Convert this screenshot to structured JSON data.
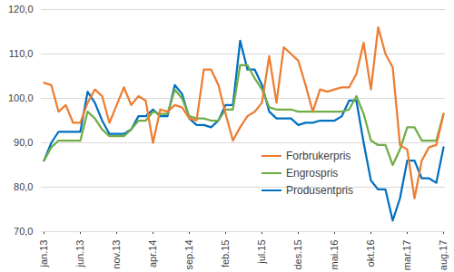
{
  "chart_data": {
    "type": "line",
    "categories": [
      "jan.13",
      null,
      null,
      null,
      null,
      "jun.13",
      null,
      null,
      null,
      null,
      "nov.13",
      null,
      null,
      null,
      null,
      "apr.14",
      null,
      null,
      null,
      null,
      "sep.14",
      null,
      null,
      null,
      null,
      "feb.15",
      null,
      null,
      null,
      null,
      "jul.15",
      null,
      null,
      null,
      null,
      "des.15",
      null,
      null,
      null,
      null,
      "mai.16",
      null,
      null,
      null,
      null,
      "okt.16",
      null,
      null,
      null,
      null,
      "mar.17",
      null,
      null,
      null,
      null,
      "aug.17"
    ],
    "series": [
      {
        "name": "Forbrukerpris",
        "color": "#ed7d31",
        "values": [
          103.5,
          103,
          97,
          98.5,
          94.5,
          94.5,
          99,
          102,
          100.5,
          94.5,
          98.5,
          102.5,
          98.5,
          100.5,
          99.5,
          90,
          97.5,
          97,
          98.5,
          98,
          95.5,
          95,
          106.5,
          106.5,
          103,
          96.5,
          90.5,
          93.5,
          96,
          97,
          99,
          109.5,
          99,
          111.5,
          110,
          108.5,
          103,
          97,
          102,
          101.5,
          102,
          102.5,
          102.5,
          105.5,
          112.5,
          102,
          116,
          110,
          107,
          89.5,
          88.5,
          77.5,
          86,
          89,
          89.5,
          96.5
        ]
      },
      {
        "name": "Engrospris",
        "color": "#70ad47",
        "values": [
          86,
          89,
          90.5,
          90.5,
          90.5,
          90.5,
          97,
          95.5,
          93,
          91.5,
          91.5,
          91.5,
          93,
          95,
          95,
          97,
          96.5,
          96.5,
          102,
          100,
          96,
          95.5,
          95.5,
          95,
          95,
          97.5,
          97.5,
          107.5,
          107.5,
          104.5,
          102,
          98,
          97.5,
          97.5,
          97.5,
          97,
          97,
          97,
          97,
          97,
          97,
          97,
          97.5,
          100.5,
          96.5,
          90.5,
          89.5,
          89.5,
          85,
          88.5,
          93.5,
          93.5,
          90.5,
          90.5,
          90.5,
          96.5
        ]
      },
      {
        "name": "Produsentpris",
        "color": "#0070c0",
        "values": [
          86,
          90,
          92.5,
          92.5,
          92.5,
          92.5,
          101.5,
          99,
          95,
          92,
          92,
          92,
          93,
          96,
          96,
          97.5,
          96,
          96,
          103,
          101,
          95.5,
          94,
          94,
          93.5,
          95,
          98.5,
          98.5,
          113,
          106.5,
          106.5,
          103,
          97,
          95.5,
          95.5,
          95.5,
          94,
          94.5,
          94.5,
          95,
          95,
          95,
          96,
          99.5,
          99.5,
          90,
          81.5,
          79.5,
          79.5,
          72.5,
          77.5,
          86,
          86,
          82,
          82,
          81,
          89
        ]
      }
    ],
    "ylim": [
      70,
      120
    ],
    "yticks": [
      {
        "value": 70,
        "label": "70,0"
      },
      {
        "value": 80,
        "label": "80,0"
      },
      {
        "value": 90,
        "label": "90,0"
      },
      {
        "value": 100,
        "label": "100,0"
      },
      {
        "value": 110,
        "label": "110,0"
      },
      {
        "value": 120,
        "label": "120,0"
      }
    ],
    "grid": true,
    "legend": "right"
  }
}
